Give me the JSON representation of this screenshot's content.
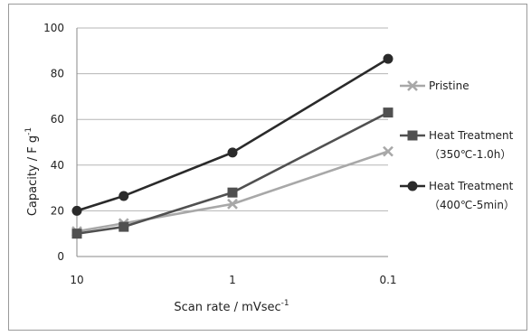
{
  "chart_data": {
    "type": "line",
    "x_scale": "log-reversed",
    "categories": [
      "10",
      "5",
      "1",
      "0.1"
    ],
    "x": [
      10,
      5,
      1,
      0.1
    ],
    "xticks": [
      "10",
      "1",
      "0.1"
    ],
    "ylim": [
      0,
      100
    ],
    "yticks": [
      "0",
      "20",
      "40",
      "60",
      "80",
      "100"
    ],
    "xlabel": "Scan rate / mVsec",
    "xlabel_sup": "-1",
    "ylabel": "Capacity / F g",
    "ylabel_sup": "-1",
    "grid": "horizontal",
    "legend_position": "right",
    "series": [
      {
        "name": "Pristine",
        "marker": "x",
        "color": "#a8a8a8",
        "values": [
          11,
          14.5,
          23,
          46
        ]
      },
      {
        "name": "Heat Treatment",
        "name_line2": "（350℃-1.0h）",
        "marker": "square",
        "color": "#505050",
        "values": [
          10,
          13,
          28,
          63
        ]
      },
      {
        "name": "Heat Treatment",
        "name_line2": "（400℃-5min）",
        "marker": "circle",
        "color": "#2a2a2a",
        "values": [
          20,
          26.5,
          45.5,
          86.5
        ]
      }
    ]
  }
}
